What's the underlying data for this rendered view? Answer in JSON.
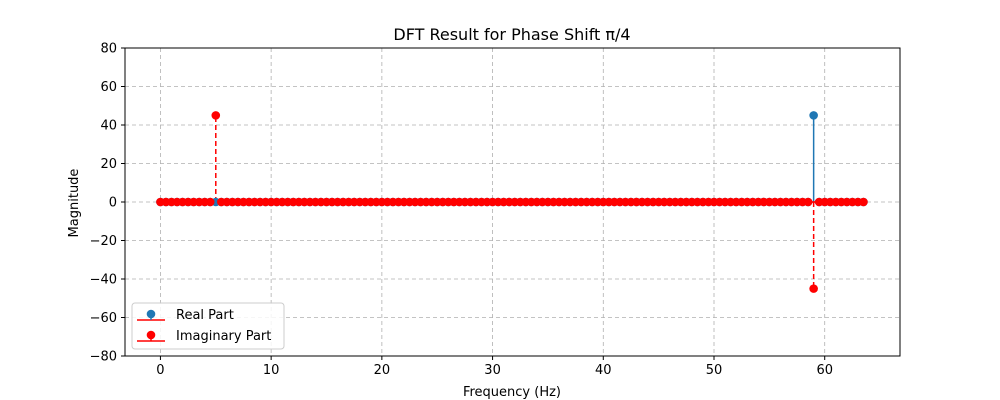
{
  "chart_data": {
    "type": "stem",
    "title": "DFT Result for Phase Shift π/4",
    "xlabel": "Frequency (Hz)",
    "ylabel": "Magnitude",
    "xlim": [
      -3.2,
      66.8
    ],
    "ylim": [
      -80,
      80
    ],
    "xticks": [
      0,
      10,
      20,
      30,
      40,
      50,
      60
    ],
    "yticks": [
      -80,
      -60,
      -40,
      -20,
      0,
      20,
      40,
      60,
      80
    ],
    "grid": true,
    "grid_style": "dashed",
    "legend_position": "lower-left",
    "n_points": 128,
    "x_step": 0.5,
    "series": [
      {
        "name": "Real Part",
        "color": "#1f77b4",
        "line_style": "solid",
        "nonzero": [
          {
            "x": 59,
            "y": 45
          }
        ],
        "default_value": 0
      },
      {
        "name": "Imaginary Part",
        "color": "#ff0000",
        "line_style": "dashed",
        "nonzero": [
          {
            "x": 5,
            "y": 45
          },
          {
            "x": 59,
            "y": -45
          }
        ],
        "default_value": 0
      }
    ]
  }
}
